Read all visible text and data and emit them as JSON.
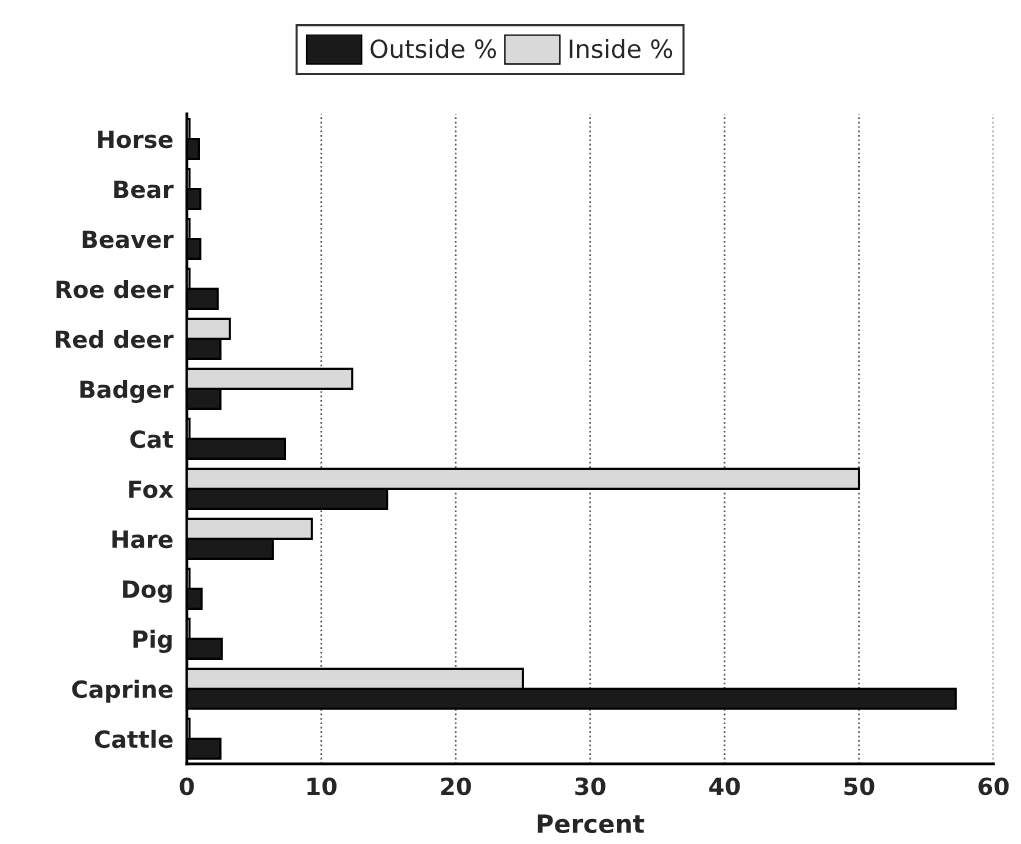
{
  "chart_data": {
    "type": "bar",
    "orientation": "horizontal",
    "xlabel": "Percent",
    "categories": [
      "Horse",
      "Bear",
      "Beaver",
      "Roe deer",
      "Red deer",
      "Badger",
      "Cat",
      "Fox",
      "Hare",
      "Dog",
      "Pig",
      "Caprine",
      "Cattle"
    ],
    "series": [
      {
        "name": "Outside %",
        "color": "#1a1a1a",
        "values": [
          0.9,
          1.0,
          1.0,
          2.3,
          2.5,
          2.5,
          7.3,
          14.9,
          6.4,
          1.1,
          2.6,
          57.2,
          2.5
        ]
      },
      {
        "name": "Inside %",
        "color": "#d9d9d9",
        "values": [
          0.2,
          0.2,
          0.2,
          0.2,
          3.2,
          12.3,
          0.2,
          50.0,
          9.3,
          0.2,
          0.2,
          25.0,
          0.2
        ]
      }
    ],
    "xlim": [
      0,
      60
    ],
    "xticks": [
      0,
      10,
      20,
      30,
      40,
      50,
      60
    ],
    "grid": "x",
    "legend": "top"
  }
}
